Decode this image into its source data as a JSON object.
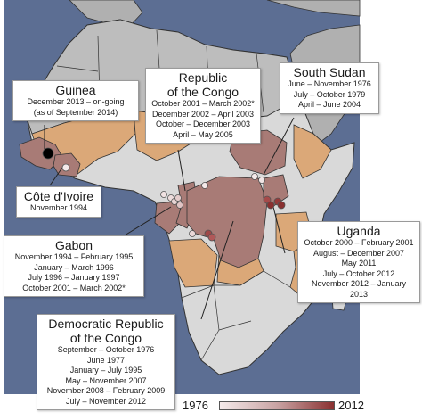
{
  "colors": {
    "ocean": "#5c6e93",
    "land": "#b0b0b0",
    "sub_saharan": "#d9d9d9",
    "border": "#333333",
    "affected": "#a87b76",
    "at_risk": "#dba878",
    "first_outbreak": "#f4eaea",
    "last_outbreak": "#8a3030"
  },
  "callouts": {
    "guinea": {
      "title": "Guinea",
      "dates": [
        "December 2013 – on-going",
        "(as of September 2014)"
      ]
    },
    "congo": {
      "title_lines": [
        "Republic",
        "of the Congo"
      ],
      "dates": [
        "October 2001 – March 2002*",
        "December 2002 – April 2003",
        "October – December 2003",
        "April – May 2005"
      ]
    },
    "south_sudan": {
      "title": "South Sudan",
      "dates": [
        "June – November 1976",
        "July – October 1979",
        "April – June 2004"
      ]
    },
    "cote": {
      "title": "Côte d'Ivoire",
      "dates": [
        "November 1994"
      ]
    },
    "gabon": {
      "title": "Gabon",
      "dates": [
        "November 1994 – February 1995",
        "January – March 1996",
        "July 1996 – January 1997",
        "October 2001 – March 2002*"
      ]
    },
    "uganda": {
      "title": "Uganda",
      "dates": [
        "October 2000 – February 2001",
        "August – December 2007",
        "May 2011",
        "July – October 2012",
        "November 2012 – January 2013"
      ]
    },
    "drc": {
      "title_lines": [
        "Democratic Republic",
        "of the Congo"
      ],
      "dates": [
        "September – October 1976",
        "June 1977",
        "January – July 1995",
        "May – November 2007",
        "November 2008 – February 2009",
        "July – November 2012"
      ]
    }
  },
  "legend": {
    "start_label": "1976",
    "end_label": "2012"
  }
}
